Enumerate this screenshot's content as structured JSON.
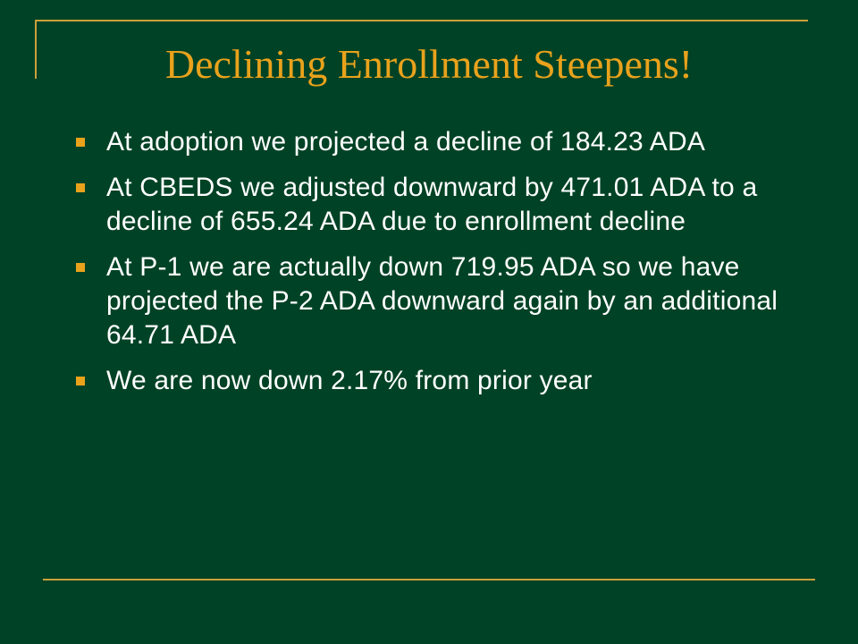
{
  "slide": {
    "title": "Declining Enrollment Steepens!",
    "bullets": [
      "At adoption we projected a decline of 184.23 ADA",
      "At CBEDS we adjusted downward by 471.01 ADA to a decline of 655.24 ADA due to enrollment decline",
      "At P-1 we are actually down 719.95 ADA so we have projected the P-2 ADA downward again by an additional 64.71 ADA",
      "We are now down 2.17% from prior year"
    ]
  },
  "colors": {
    "background": "#004225",
    "accent": "#E9A21C",
    "rule": "#C9A13B",
    "text": "#FFFFFF"
  }
}
